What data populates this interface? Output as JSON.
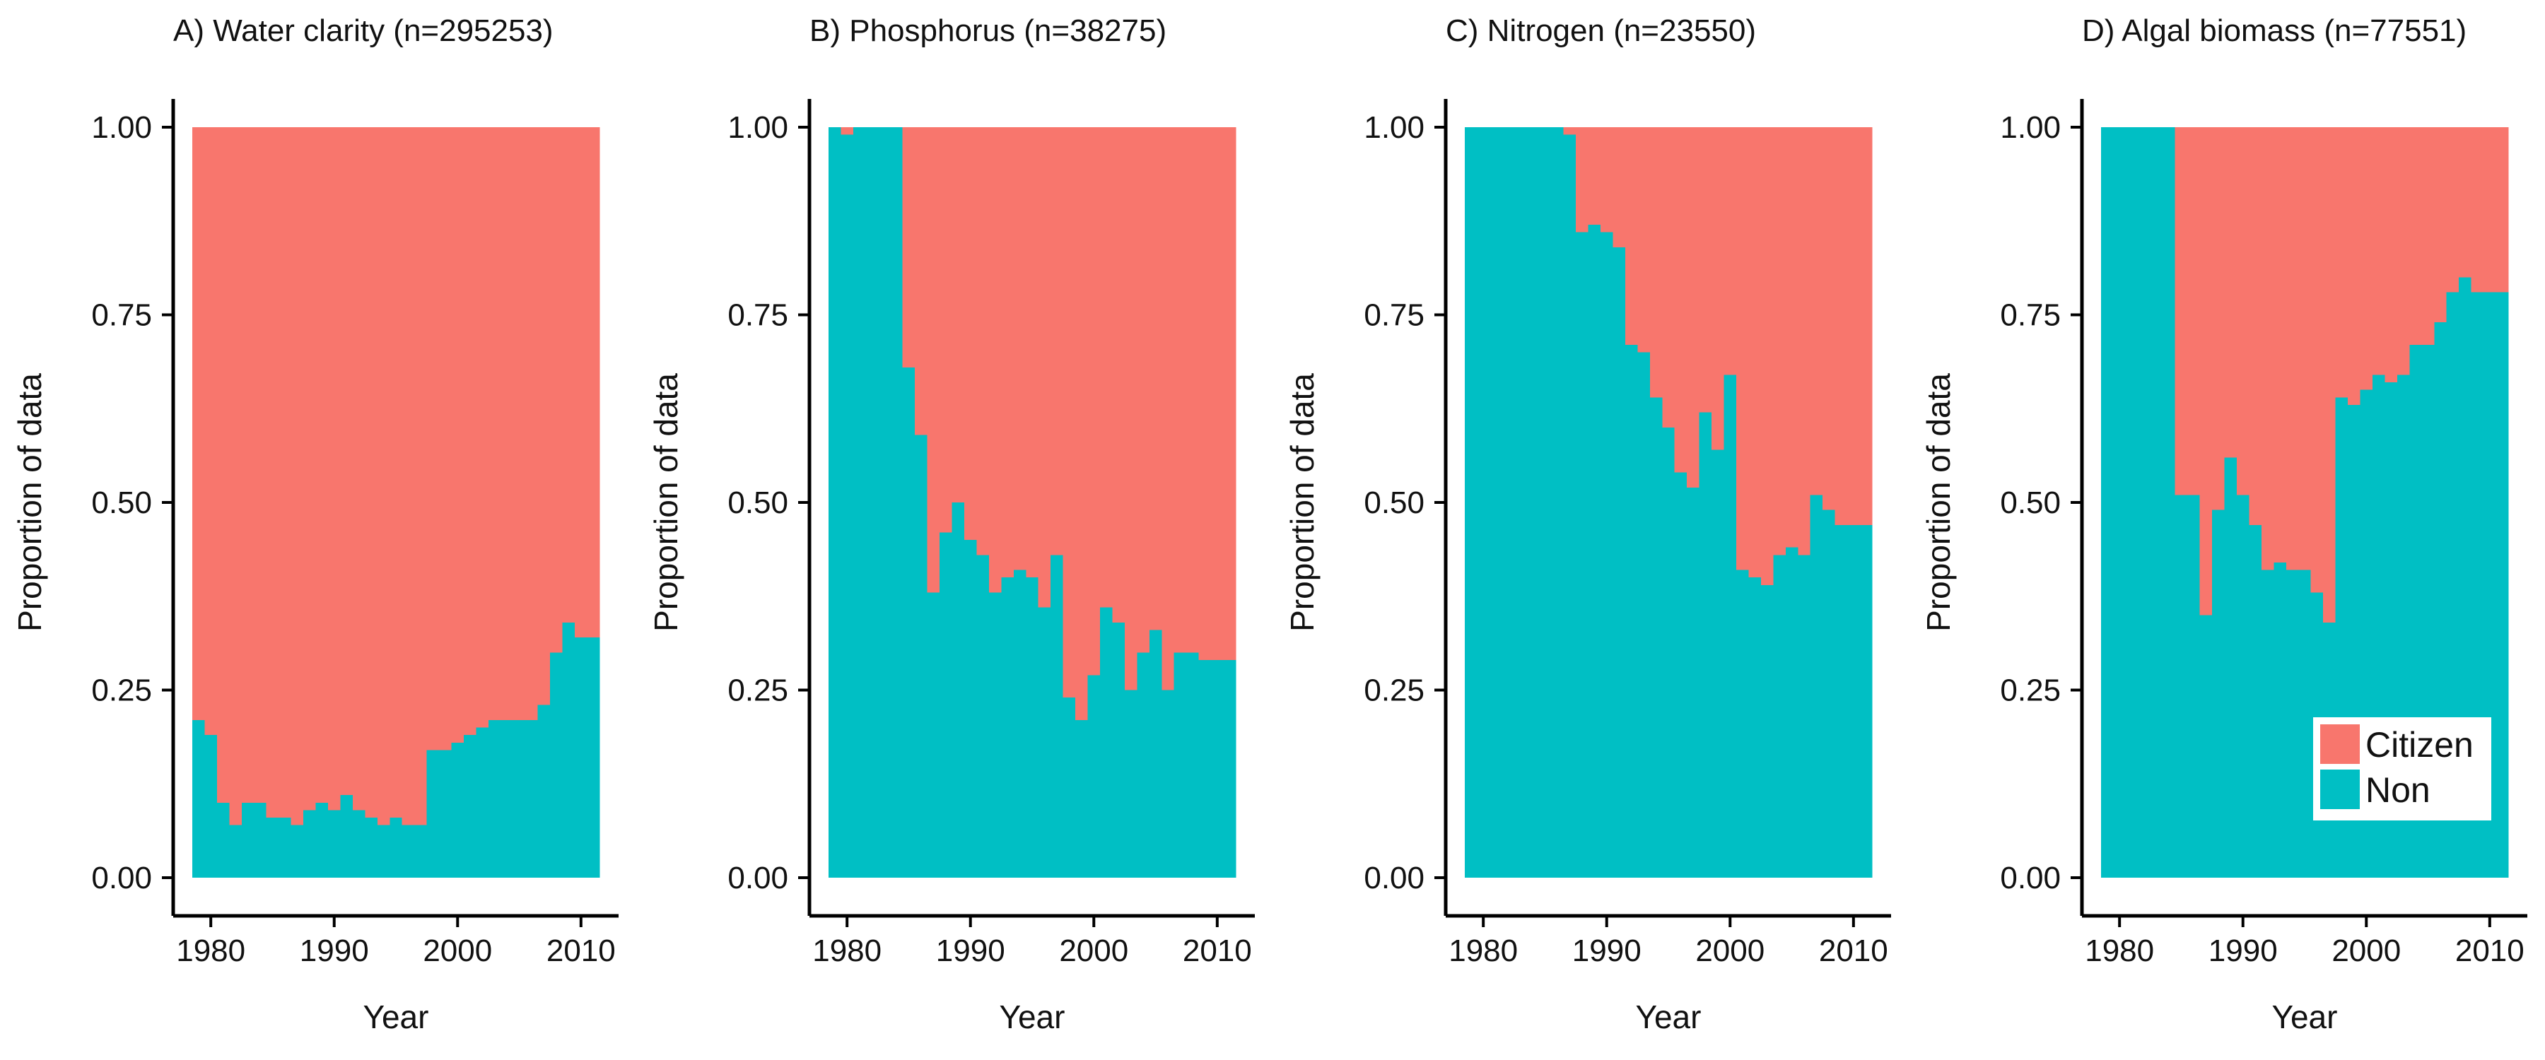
{
  "colors": {
    "citizen": "#F8766D",
    "non": "#00BFC4",
    "axis": "#000000"
  },
  "legend": {
    "placement": "bottom-right of panel D",
    "items": [
      {
        "label": "Citizen",
        "color": "#F8766D"
      },
      {
        "label": "Non",
        "color": "#00BFC4"
      }
    ]
  },
  "chart_data": [
    {
      "type": "bar",
      "stacked": true,
      "title": "A) Water clarity (n=295253)",
      "xlabel": "Year",
      "ylabel": "Proportion of data",
      "xlim": [
        1979,
        2011
      ],
      "ylim": [
        0,
        1
      ],
      "xticks": [
        "1980",
        "1990",
        "2000",
        "2010"
      ],
      "yticks": [
        "0.00",
        "0.25",
        "0.50",
        "0.75",
        "1.00"
      ],
      "x": [
        1979,
        1980,
        1981,
        1982,
        1983,
        1984,
        1985,
        1986,
        1987,
        1988,
        1989,
        1990,
        1991,
        1992,
        1993,
        1994,
        1995,
        1996,
        1997,
        1998,
        1999,
        2000,
        2001,
        2002,
        2003,
        2004,
        2005,
        2006,
        2007,
        2008,
        2009,
        2010,
        2011
      ],
      "series": [
        {
          "name": "Non",
          "values": [
            0.21,
            0.19,
            0.1,
            0.07,
            0.1,
            0.1,
            0.08,
            0.08,
            0.07,
            0.09,
            0.1,
            0.09,
            0.11,
            0.09,
            0.08,
            0.07,
            0.08,
            0.07,
            0.07,
            0.17,
            0.17,
            0.18,
            0.19,
            0.2,
            0.21,
            0.21,
            0.21,
            0.21,
            0.23,
            0.3,
            0.34,
            0.32,
            0.32
          ]
        },
        {
          "name": "Citizen",
          "values": [
            0.79,
            0.81,
            0.9,
            0.93,
            0.9,
            0.9,
            0.92,
            0.92,
            0.93,
            0.91,
            0.9,
            0.91,
            0.89,
            0.91,
            0.92,
            0.93,
            0.92,
            0.93,
            0.93,
            0.83,
            0.83,
            0.82,
            0.81,
            0.8,
            0.79,
            0.79,
            0.79,
            0.79,
            0.77,
            0.7,
            0.66,
            0.68,
            0.68
          ]
        }
      ]
    },
    {
      "type": "bar",
      "stacked": true,
      "title": "B) Phosphorus (n=38275)",
      "xlabel": "Year",
      "ylabel": "Proportion of data",
      "xlim": [
        1979,
        2011
      ],
      "ylim": [
        0,
        1
      ],
      "xticks": [
        "1980",
        "1990",
        "2000",
        "2010"
      ],
      "yticks": [
        "0.00",
        "0.25",
        "0.50",
        "0.75",
        "1.00"
      ],
      "x": [
        1979,
        1980,
        1981,
        1982,
        1983,
        1984,
        1985,
        1986,
        1987,
        1988,
        1989,
        1990,
        1991,
        1992,
        1993,
        1994,
        1995,
        1996,
        1997,
        1998,
        1999,
        2000,
        2001,
        2002,
        2003,
        2004,
        2005,
        2006,
        2007,
        2008,
        2009,
        2010,
        2011
      ],
      "series": [
        {
          "name": "Non",
          "values": [
            1.0,
            0.99,
            1.0,
            1.0,
            1.0,
            1.0,
            0.68,
            0.59,
            0.38,
            0.46,
            0.5,
            0.45,
            0.43,
            0.38,
            0.4,
            0.41,
            0.4,
            0.36,
            0.43,
            0.24,
            0.21,
            0.27,
            0.36,
            0.34,
            0.25,
            0.3,
            0.33,
            0.25,
            0.3,
            0.3,
            0.29,
            0.29,
            0.29
          ]
        },
        {
          "name": "Citizen",
          "values": [
            0.0,
            0.01,
            0.0,
            0.0,
            0.0,
            0.0,
            0.32,
            0.41,
            0.62,
            0.54,
            0.5,
            0.55,
            0.57,
            0.62,
            0.6,
            0.59,
            0.6,
            0.64,
            0.57,
            0.76,
            0.79,
            0.73,
            0.64,
            0.66,
            0.75,
            0.7,
            0.67,
            0.75,
            0.7,
            0.7,
            0.71,
            0.71,
            0.71
          ]
        }
      ]
    },
    {
      "type": "bar",
      "stacked": true,
      "title": "C) Nitrogen (n=23550)",
      "xlabel": "Year",
      "ylabel": "Proportion of data",
      "xlim": [
        1979,
        2011
      ],
      "ylim": [
        0,
        1
      ],
      "xticks": [
        "1980",
        "1990",
        "2000",
        "2010"
      ],
      "yticks": [
        "0.00",
        "0.25",
        "0.50",
        "0.75",
        "1.00"
      ],
      "x": [
        1979,
        1980,
        1981,
        1982,
        1983,
        1984,
        1985,
        1986,
        1987,
        1988,
        1989,
        1990,
        1991,
        1992,
        1993,
        1994,
        1995,
        1996,
        1997,
        1998,
        1999,
        2000,
        2001,
        2002,
        2003,
        2004,
        2005,
        2006,
        2007,
        2008,
        2009,
        2010,
        2011
      ],
      "series": [
        {
          "name": "Non",
          "values": [
            1.0,
            1.0,
            1.0,
            1.0,
            1.0,
            1.0,
            1.0,
            1.0,
            0.99,
            0.86,
            0.87,
            0.86,
            0.84,
            0.71,
            0.7,
            0.64,
            0.6,
            0.54,
            0.52,
            0.62,
            0.57,
            0.67,
            0.41,
            0.4,
            0.39,
            0.43,
            0.44,
            0.43,
            0.51,
            0.49,
            0.47,
            0.47,
            0.47
          ]
        },
        {
          "name": "Citizen",
          "values": [
            0.0,
            0.0,
            0.0,
            0.0,
            0.0,
            0.0,
            0.0,
            0.0,
            0.01,
            0.14,
            0.13,
            0.14,
            0.16,
            0.29,
            0.3,
            0.36,
            0.4,
            0.46,
            0.48,
            0.38,
            0.43,
            0.33,
            0.59,
            0.6,
            0.61,
            0.57,
            0.56,
            0.57,
            0.49,
            0.51,
            0.53,
            0.53,
            0.53
          ]
        }
      ]
    },
    {
      "type": "bar",
      "stacked": true,
      "title": "D) Algal biomass (n=77551)",
      "xlabel": "Year",
      "ylabel": "Proportion of data",
      "xlim": [
        1979,
        2011
      ],
      "ylim": [
        0,
        1
      ],
      "xticks": [
        "1980",
        "1990",
        "2000",
        "2010"
      ],
      "yticks": [
        "0.00",
        "0.25",
        "0.50",
        "0.75",
        "1.00"
      ],
      "x": [
        1979,
        1980,
        1981,
        1982,
        1983,
        1984,
        1985,
        1986,
        1987,
        1988,
        1989,
        1990,
        1991,
        1992,
        1993,
        1994,
        1995,
        1996,
        1997,
        1998,
        1999,
        2000,
        2001,
        2002,
        2003,
        2004,
        2005,
        2006,
        2007,
        2008,
        2009,
        2010,
        2011
      ],
      "series": [
        {
          "name": "Non",
          "values": [
            1.0,
            1.0,
            1.0,
            1.0,
            1.0,
            1.0,
            0.51,
            0.51,
            0.35,
            0.49,
            0.56,
            0.51,
            0.47,
            0.41,
            0.42,
            0.41,
            0.41,
            0.38,
            0.34,
            0.64,
            0.63,
            0.65,
            0.67,
            0.66,
            0.67,
            0.71,
            0.71,
            0.74,
            0.78,
            0.8,
            0.78,
            0.78,
            0.78
          ]
        },
        {
          "name": "Citizen",
          "values": [
            0.0,
            0.0,
            0.0,
            0.0,
            0.0,
            0.0,
            0.49,
            0.49,
            0.65,
            0.51,
            0.44,
            0.49,
            0.53,
            0.59,
            0.58,
            0.59,
            0.59,
            0.62,
            0.66,
            0.36,
            0.37,
            0.35,
            0.33,
            0.34,
            0.33,
            0.29,
            0.29,
            0.26,
            0.22,
            0.2,
            0.22,
            0.22,
            0.22
          ]
        }
      ]
    }
  ]
}
